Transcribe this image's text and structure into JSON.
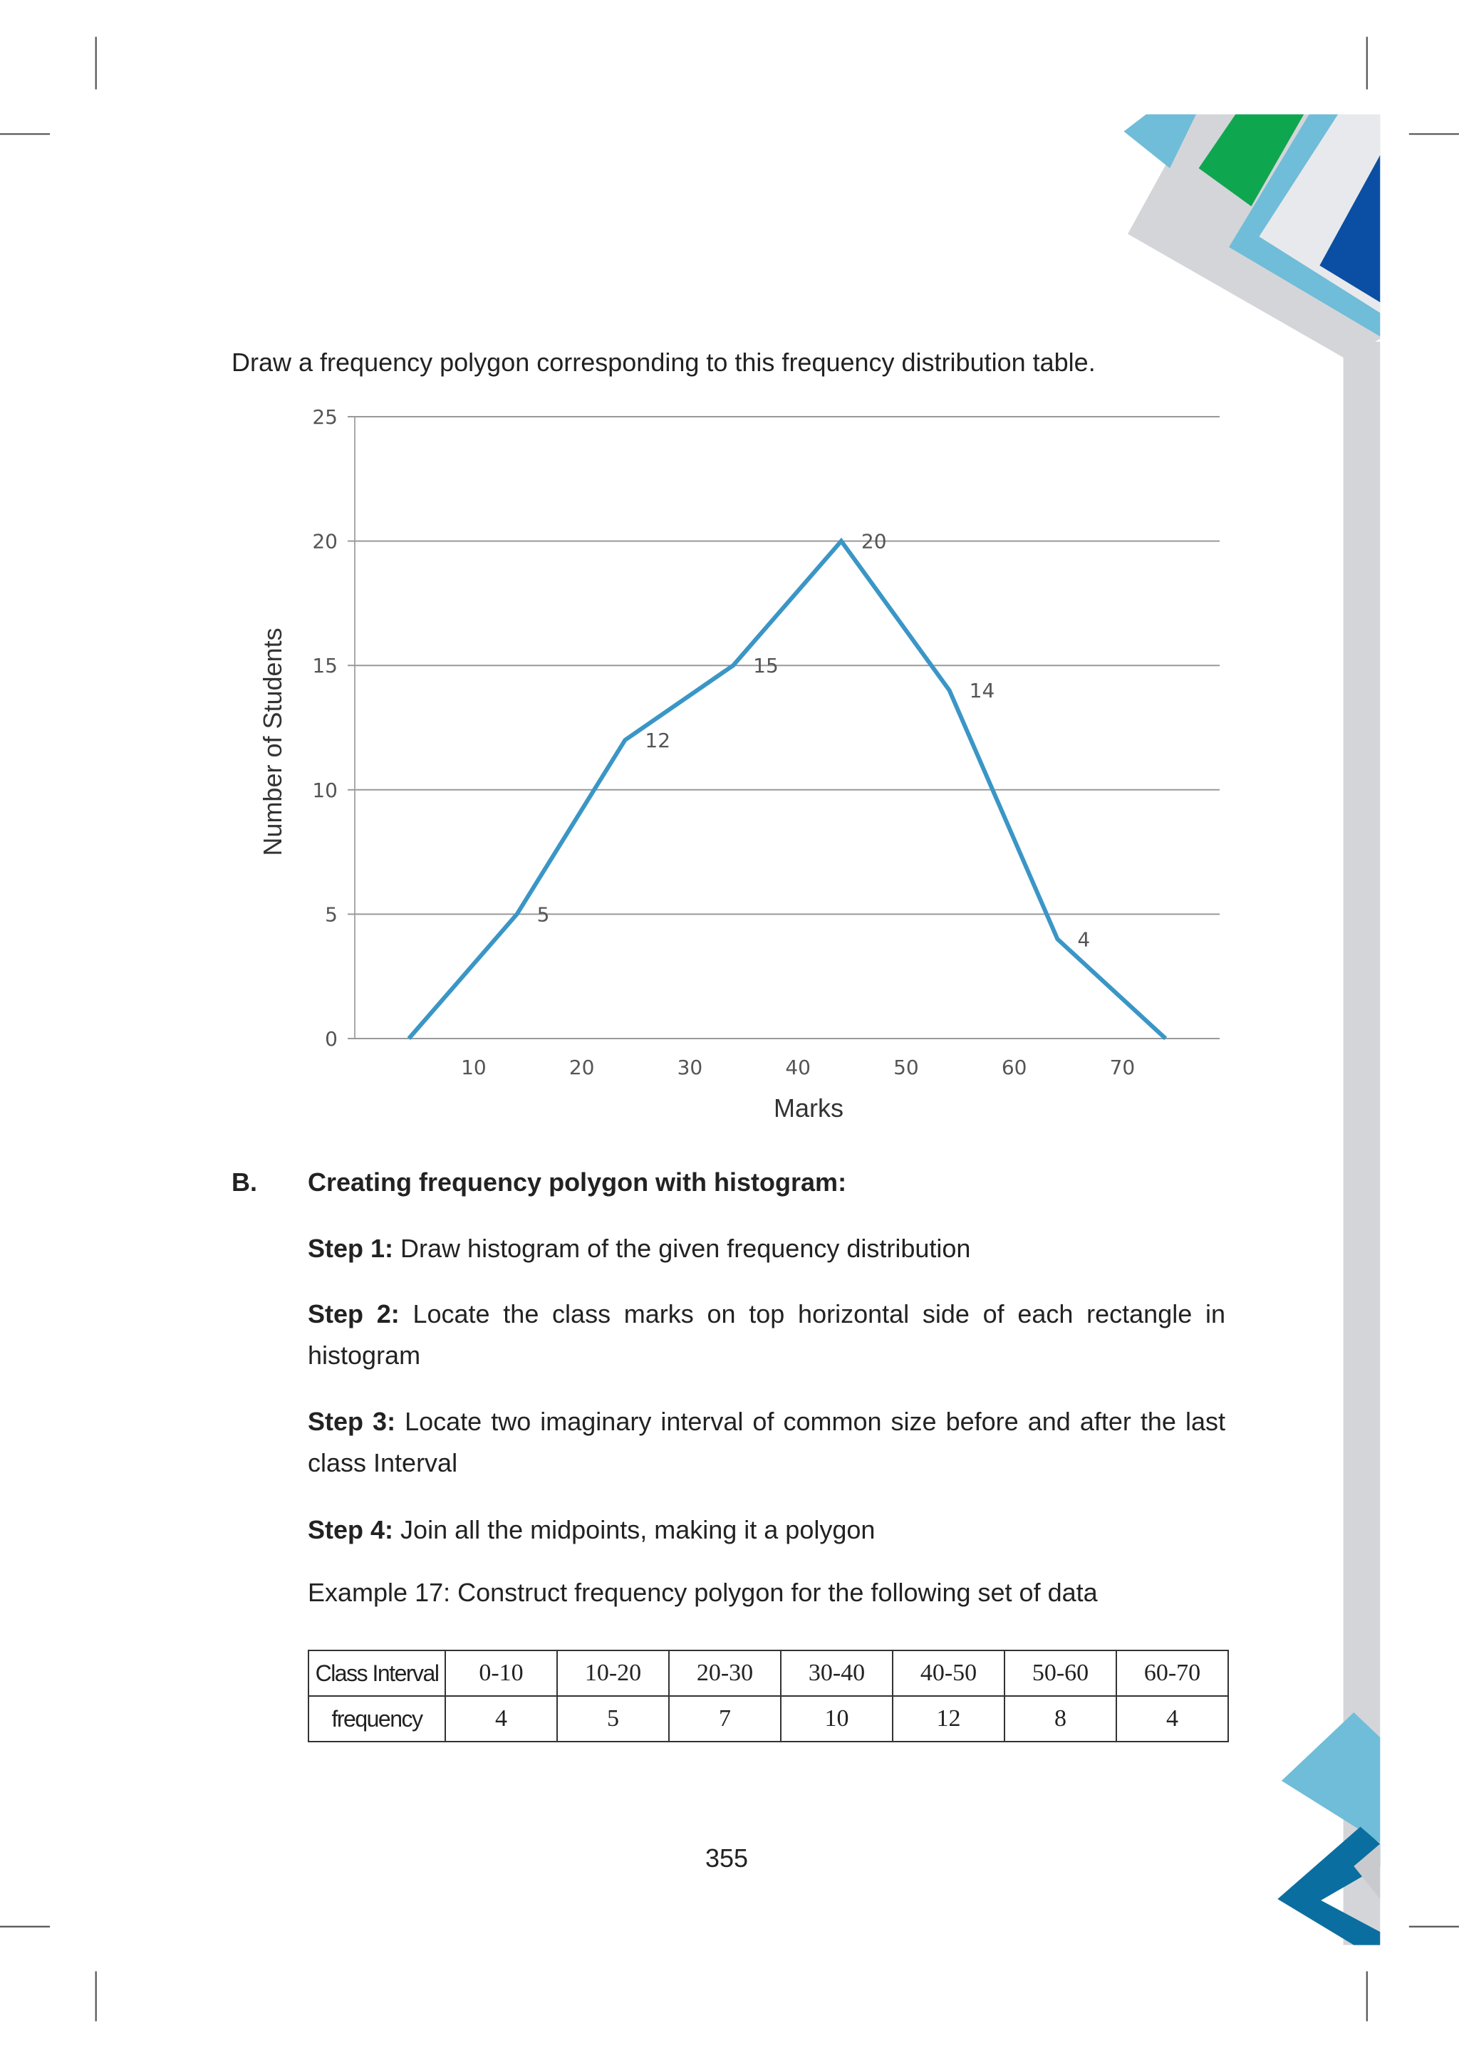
{
  "intro": "Draw a frequency polygon corresponding to this frequency distribution table.",
  "chart_data": {
    "type": "line",
    "x": [
      4,
      14,
      24,
      34,
      44,
      54,
      64,
      74
    ],
    "series": [
      {
        "name": null,
        "color": "#3a96c6",
        "values": [
          0,
          5,
          12,
          15,
          20,
          14,
          4,
          0
        ],
        "value_labels": [
          null,
          "5",
          "12",
          "15",
          "20",
          "14",
          "4",
          null
        ]
      }
    ],
    "xlim": [
      -1,
      79
    ],
    "xticks": [
      10,
      20,
      30,
      40,
      50,
      60,
      70
    ],
    "ylim": [
      0,
      25
    ],
    "yticks": [
      0,
      5,
      10,
      15,
      20,
      25
    ],
    "grid": true,
    "xlabel": "Marks",
    "ylabel": "Number of Students"
  },
  "section": {
    "label": "B.",
    "title": "Creating frequency polygon with histogram:"
  },
  "steps": [
    {
      "label": "Step 1:",
      "text": "Draw histogram of the given frequency distribution"
    },
    {
      "label": "Step 2:",
      "text": "Locate the class marks on top horizontal side of each rectangle in histogram"
    },
    {
      "label": "Step 3:",
      "text": "Locate two imaginary interval of common size before and after the last class Interval"
    },
    {
      "label": "Step 4:",
      "text": "Join all the midpoints, making it a polygon"
    }
  ],
  "example": "Example 17: Construct frequency polygon for the following set of data",
  "table": {
    "rows": [
      [
        "Class Interval",
        "0-10",
        "10-20",
        "20-30",
        "30-40",
        "40-50",
        "50-60",
        "60-70"
      ],
      [
        "frequency",
        4,
        5,
        7,
        10,
        12,
        8,
        4
      ]
    ]
  },
  "page_number": "355"
}
